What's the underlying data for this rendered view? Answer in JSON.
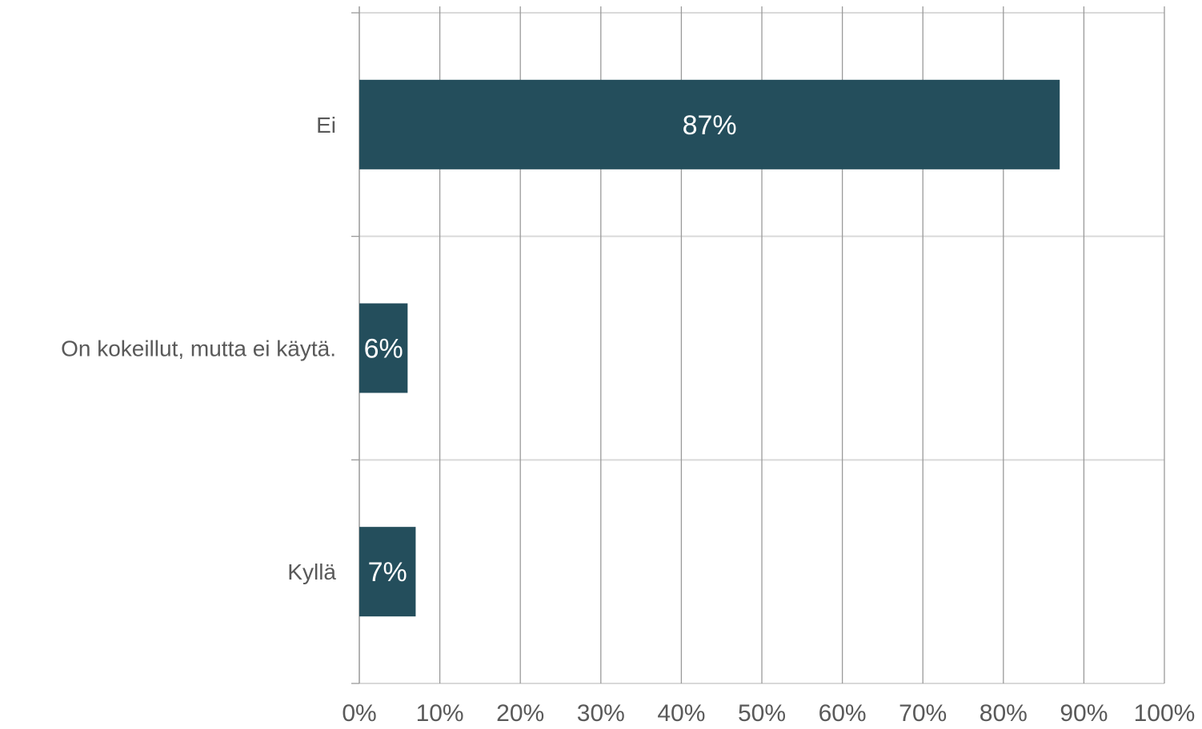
{
  "chart_data": {
    "type": "bar",
    "orientation": "horizontal",
    "categories": [
      "Ei",
      "On kokeillut, mutta ei käytä.",
      "Kyllä"
    ],
    "values": [
      87,
      6,
      7
    ],
    "data_labels": [
      "87%",
      "6%",
      "7%"
    ],
    "xlim": [
      0,
      100
    ],
    "x_ticks": [
      0,
      10,
      20,
      30,
      40,
      50,
      60,
      70,
      80,
      90,
      100
    ],
    "x_tick_labels": [
      "0%",
      "10%",
      "20%",
      "30%",
      "40%",
      "50%",
      "60%",
      "70%",
      "80%",
      "90%",
      "100%"
    ],
    "title": "",
    "xlabel": "",
    "ylabel": "",
    "grid": "vertical",
    "legend": "none",
    "colors": {
      "bar": "#244e5c",
      "data_label": "#ffffff",
      "grid": "#9a9a9a",
      "band_separator": "#d9d9d9",
      "tick_label": "#595959"
    }
  }
}
